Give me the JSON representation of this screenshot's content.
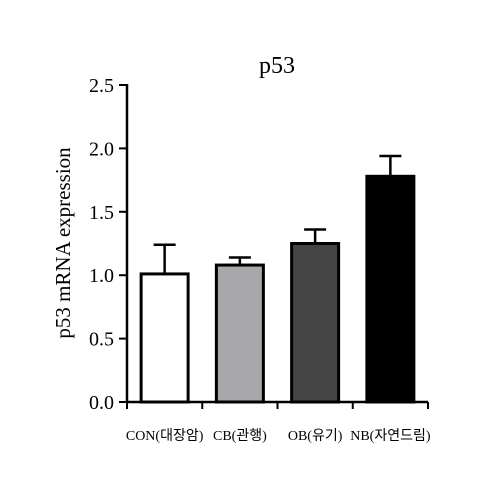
{
  "chart_data": {
    "type": "bar",
    "title": "p53",
    "ylabel": "p53 mRNA expression",
    "xlabel": "",
    "ylim": [
      0,
      2.5
    ],
    "yticks": [
      "0.0",
      "0.5",
      "1.0",
      "1.5",
      "2.0",
      "2.5"
    ],
    "categories": [
      "CON(대장암)",
      "CB(관행)",
      "OB(유기)",
      "NB(자연드림)"
    ],
    "values": [
      1.01,
      1.08,
      1.25,
      1.78
    ],
    "errors": [
      0.23,
      0.06,
      0.11,
      0.16
    ],
    "colors": [
      "#ffffff",
      "#a8a8ab",
      "#444444",
      "#000000"
    ],
    "grid": false
  }
}
